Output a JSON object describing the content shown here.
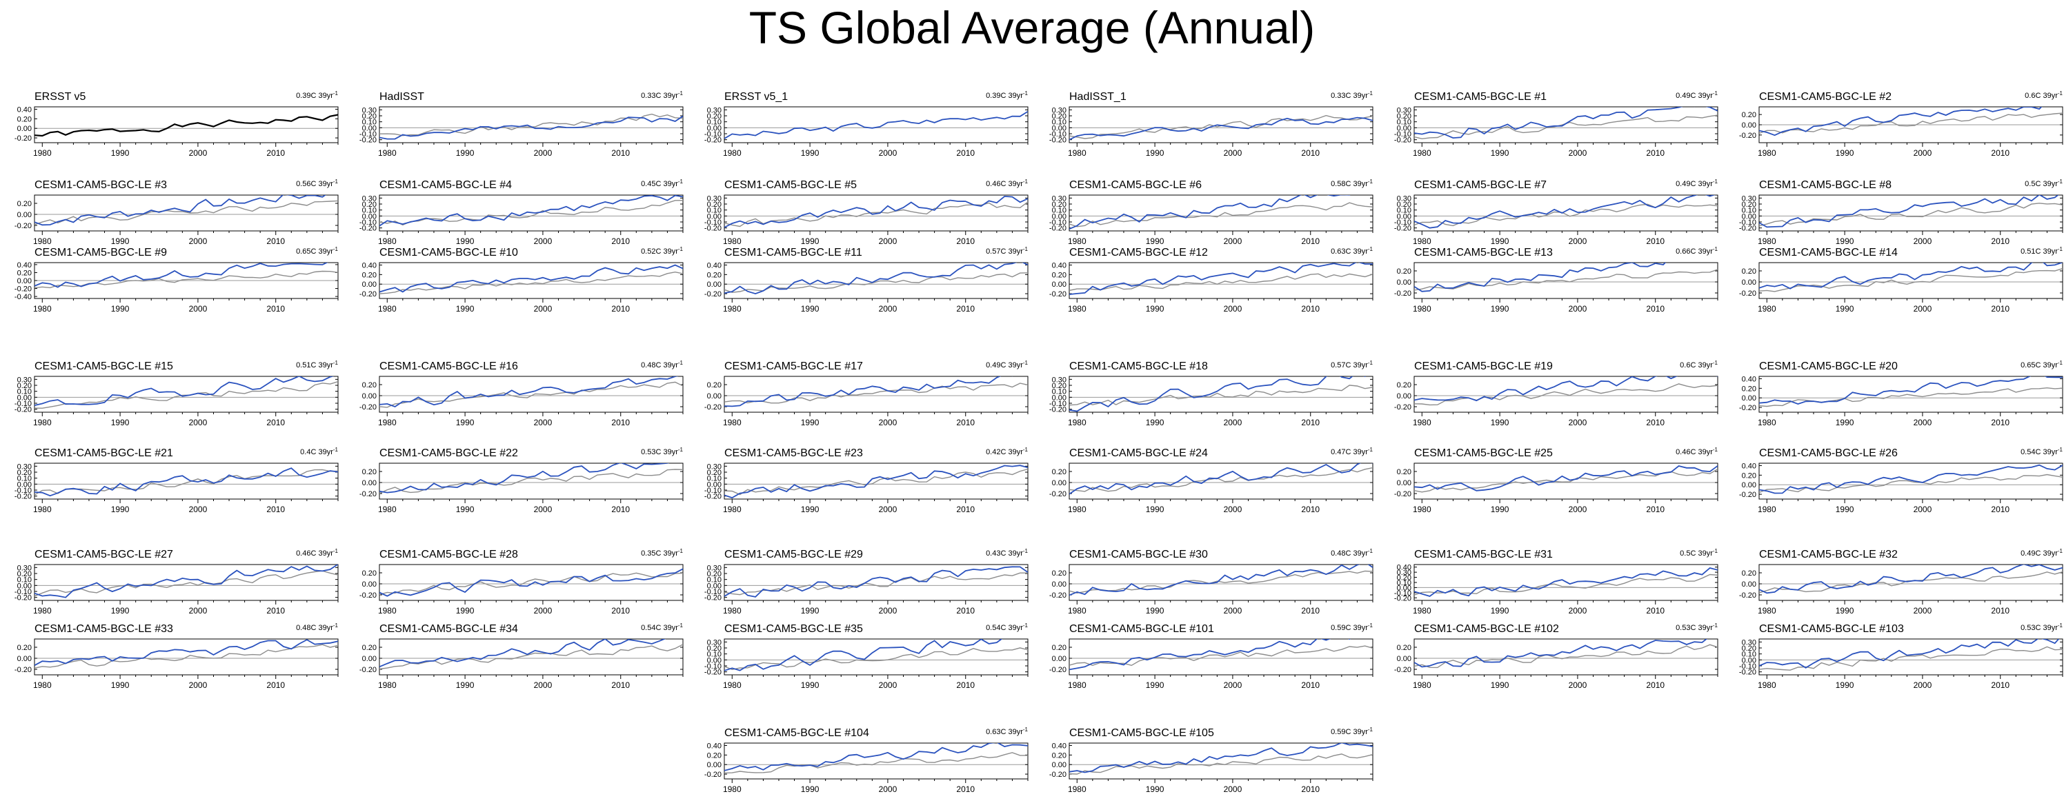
{
  "title": "TS Global Average (Annual)",
  "colors": {
    "observed": "#000000",
    "model": "#2a52be",
    "reference": "#8c8c8c",
    "zero_line": "#9a9a9a"
  },
  "chart_data": {
    "type": "line",
    "x_range": [
      1979,
      2018
    ],
    "x_ticks": [
      "1980",
      "1990",
      "2000",
      "2010"
    ],
    "grid": false,
    "panels": [
      {
        "title": "ERSST v5",
        "trend": "0.39C 39yr",
        "trend_sup": "-1",
        "ylim": [
          -0.3,
          0.45
        ],
        "yticks": [
          "0.40",
          "0.20",
          "0.00",
          "-0.20"
        ],
        "line_color": "observed",
        "has_reference": false,
        "seed": 1,
        "amplitude": 0.05
      },
      {
        "title": "HadISST",
        "trend": "0.33C 39yr",
        "trend_sup": "-1",
        "ylim": [
          -0.25,
          0.35
        ],
        "yticks": [
          "0.30",
          "0.20",
          "0.10",
          "0.00",
          "-0.10",
          "-0.20"
        ],
        "line_color": "model",
        "has_reference": true,
        "seed": 2,
        "amplitude": 0.05
      },
      {
        "title": "ERSST v5_1",
        "trend": "0.39C 39yr",
        "trend_sup": "-1",
        "ylim": [
          -0.25,
          0.35
        ],
        "yticks": [
          "0.30",
          "0.20",
          "0.10",
          "0.00",
          "-0.10",
          "-0.20"
        ],
        "line_color": "model",
        "has_reference": false,
        "seed": 3,
        "amplitude": 0.05
      },
      {
        "title": "HadISST_1",
        "trend": "0.33C 39yr",
        "trend_sup": "-1",
        "ylim": [
          -0.25,
          0.35
        ],
        "yticks": [
          "0.30",
          "0.20",
          "0.10",
          "0.00",
          "-0.10",
          "-0.20"
        ],
        "line_color": "model",
        "has_reference": true,
        "seed": 4,
        "amplitude": 0.05
      },
      {
        "title": "CESM1-CAM5-BGC-LE #1",
        "trend": "0.49C 39yr",
        "trend_sup": "-1",
        "ylim": [
          -0.25,
          0.35
        ],
        "yticks": [
          "0.30",
          "0.20",
          "0.10",
          "0.00",
          "-0.10",
          "-0.20"
        ],
        "line_color": "model",
        "has_reference": true,
        "seed": 5,
        "amplitude": 0.07
      },
      {
        "title": "CESM1-CAM5-BGC-LE #2",
        "trend": "0.6C 39yr",
        "trend_sup": "-1",
        "ylim": [
          -0.35,
          0.35
        ],
        "yticks": [
          "0.20",
          "0.00",
          "-0.20"
        ],
        "line_color": "model",
        "has_reference": true,
        "seed": 6,
        "amplitude": 0.07
      },
      {
        "title": "CESM1-CAM5-BGC-LE #3",
        "trend": "0.56C 39yr",
        "trend_sup": "-1",
        "ylim": [
          -0.3,
          0.35
        ],
        "yticks": [
          "0.20",
          "0.00",
          "-0.20"
        ],
        "line_color": "model",
        "has_reference": true,
        "seed": 7,
        "amplitude": 0.07
      },
      {
        "title": "CESM1-CAM5-BGC-LE #4",
        "trend": "0.45C 39yr",
        "trend_sup": "-1",
        "ylim": [
          -0.25,
          0.35
        ],
        "yticks": [
          "0.30",
          "0.20",
          "0.10",
          "0.00",
          "-0.10",
          "-0.20"
        ],
        "line_color": "model",
        "has_reference": true,
        "seed": 8,
        "amplitude": 0.07
      },
      {
        "title": "CESM1-CAM5-BGC-LE #5",
        "trend": "0.46C 39yr",
        "trend_sup": "-1",
        "ylim": [
          -0.25,
          0.35
        ],
        "yticks": [
          "0.30",
          "0.20",
          "0.10",
          "0.00",
          "-0.10",
          "-0.20"
        ],
        "line_color": "model",
        "has_reference": true,
        "seed": 9,
        "amplitude": 0.07
      },
      {
        "title": "CESM1-CAM5-BGC-LE #6",
        "trend": "0.58C 39yr",
        "trend_sup": "-1",
        "ylim": [
          -0.25,
          0.35
        ],
        "yticks": [
          "0.30",
          "0.20",
          "0.10",
          "0.00",
          "-0.10",
          "-0.20"
        ],
        "line_color": "model",
        "has_reference": true,
        "seed": 10,
        "amplitude": 0.07
      },
      {
        "title": "CESM1-CAM5-BGC-LE #7",
        "trend": "0.49C 39yr",
        "trend_sup": "-1",
        "ylim": [
          -0.25,
          0.35
        ],
        "yticks": [
          "0.30",
          "0.20",
          "0.10",
          "0.00",
          "-0.10",
          "-0.20"
        ],
        "line_color": "model",
        "has_reference": true,
        "seed": 11,
        "amplitude": 0.07
      },
      {
        "title": "CESM1-CAM5-BGC-LE #8",
        "trend": "0.5C 39yr",
        "trend_sup": "-1",
        "ylim": [
          -0.25,
          0.35
        ],
        "yticks": [
          "0.30",
          "0.20",
          "0.10",
          "0.00",
          "-0.10",
          "-0.20"
        ],
        "line_color": "model",
        "has_reference": true,
        "seed": 12,
        "amplitude": 0.07
      },
      {
        "title": "CESM1-CAM5-BGC-LE #9",
        "trend": "0.65C 39yr",
        "trend_sup": "-1",
        "ylim": [
          -0.45,
          0.45
        ],
        "yticks": [
          "0.40",
          "0.20",
          "0.00",
          "-0.20",
          "-0.40"
        ],
        "line_color": "model",
        "has_reference": true,
        "seed": 13,
        "amplitude": 0.08
      },
      {
        "title": "CESM1-CAM5-BGC-LE #10",
        "trend": "0.52C 39yr",
        "trend_sup": "-1",
        "ylim": [
          -0.3,
          0.45
        ],
        "yticks": [
          "0.40",
          "0.20",
          "0.00",
          "-0.20"
        ],
        "line_color": "model",
        "has_reference": true,
        "seed": 14,
        "amplitude": 0.07
      },
      {
        "title": "CESM1-CAM5-BGC-LE #11",
        "trend": "0.57C 39yr",
        "trend_sup": "-1",
        "ylim": [
          -0.3,
          0.45
        ],
        "yticks": [
          "0.40",
          "0.20",
          "0.00",
          "-0.20"
        ],
        "line_color": "model",
        "has_reference": true,
        "seed": 15,
        "amplitude": 0.07
      },
      {
        "title": "CESM1-CAM5-BGC-LE #12",
        "trend": "0.63C 39yr",
        "trend_sup": "-1",
        "ylim": [
          -0.3,
          0.45
        ],
        "yticks": [
          "0.40",
          "0.20",
          "0.00",
          "-0.20"
        ],
        "line_color": "model",
        "has_reference": true,
        "seed": 16,
        "amplitude": 0.07
      },
      {
        "title": "CESM1-CAM5-BGC-LE #13",
        "trend": "0.66C 39yr",
        "trend_sup": "-1",
        "ylim": [
          -0.3,
          0.35
        ],
        "yticks": [
          "0.20",
          "0.00",
          "-0.20"
        ],
        "line_color": "model",
        "has_reference": true,
        "seed": 17,
        "amplitude": 0.07
      },
      {
        "title": "CESM1-CAM5-BGC-LE #14",
        "trend": "0.51C 39yr",
        "trend_sup": "-1",
        "ylim": [
          -0.3,
          0.35
        ],
        "yticks": [
          "0.20",
          "0.00",
          "-0.20"
        ],
        "line_color": "model",
        "has_reference": true,
        "seed": 18,
        "amplitude": 0.07
      },
      {
        "title": "CESM1-CAM5-BGC-LE #15",
        "trend": "0.51C 39yr",
        "trend_sup": "-1",
        "ylim": [
          -0.25,
          0.35
        ],
        "yticks": [
          "0.30",
          "0.20",
          "0.10",
          "0.00",
          "-0.10",
          "-0.20"
        ],
        "line_color": "model",
        "has_reference": true,
        "seed": 19,
        "amplitude": 0.07
      },
      {
        "title": "CESM1-CAM5-BGC-LE #16",
        "trend": "0.48C 39yr",
        "trend_sup": "-1",
        "ylim": [
          -0.3,
          0.35
        ],
        "yticks": [
          "0.20",
          "0.00",
          "-0.20"
        ],
        "line_color": "model",
        "has_reference": true,
        "seed": 20,
        "amplitude": 0.07
      },
      {
        "title": "CESM1-CAM5-BGC-LE #17",
        "trend": "0.49C 39yr",
        "trend_sup": "-1",
        "ylim": [
          -0.3,
          0.35
        ],
        "yticks": [
          "0.20",
          "0.00",
          "-0.20"
        ],
        "line_color": "model",
        "has_reference": true,
        "seed": 21,
        "amplitude": 0.07
      },
      {
        "title": "CESM1-CAM5-BGC-LE #18",
        "trend": "0.57C 39yr",
        "trend_sup": "-1",
        "ylim": [
          -0.25,
          0.35
        ],
        "yticks": [
          "0.30",
          "0.20",
          "0.10",
          "0.00",
          "-0.10",
          "-0.20"
        ],
        "line_color": "model",
        "has_reference": true,
        "seed": 22,
        "amplitude": 0.07
      },
      {
        "title": "CESM1-CAM5-BGC-LE #19",
        "trend": "0.6C 39yr",
        "trend_sup": "-1",
        "ylim": [
          -0.3,
          0.35
        ],
        "yticks": [
          "0.20",
          "0.00",
          "-0.20"
        ],
        "line_color": "model",
        "has_reference": true,
        "seed": 23,
        "amplitude": 0.07
      },
      {
        "title": "CESM1-CAM5-BGC-LE #20",
        "trend": "0.65C 39yr",
        "trend_sup": "-1",
        "ylim": [
          -0.3,
          0.45
        ],
        "yticks": [
          "0.40",
          "0.20",
          "0.00",
          "-0.20"
        ],
        "line_color": "model",
        "has_reference": true,
        "seed": 24,
        "amplitude": 0.07
      },
      {
        "title": "CESM1-CAM5-BGC-LE #21",
        "trend": "0.4C 39yr",
        "trend_sup": "-1",
        "ylim": [
          -0.25,
          0.35
        ],
        "yticks": [
          "0.30",
          "0.20",
          "0.10",
          "0.00",
          "-0.10",
          "-0.20"
        ],
        "line_color": "model",
        "has_reference": true,
        "seed": 25,
        "amplitude": 0.07
      },
      {
        "title": "CESM1-CAM5-BGC-LE #22",
        "trend": "0.53C 39yr",
        "trend_sup": "-1",
        "ylim": [
          -0.3,
          0.35
        ],
        "yticks": [
          "0.20",
          "0.00",
          "-0.20"
        ],
        "line_color": "model",
        "has_reference": true,
        "seed": 26,
        "amplitude": 0.07
      },
      {
        "title": "CESM1-CAM5-BGC-LE #23",
        "trend": "0.42C 39yr",
        "trend_sup": "-1",
        "ylim": [
          -0.25,
          0.35
        ],
        "yticks": [
          "0.30",
          "0.20",
          "0.10",
          "0.00",
          "-0.10",
          "-0.20"
        ],
        "line_color": "model",
        "has_reference": true,
        "seed": 27,
        "amplitude": 0.07
      },
      {
        "title": "CESM1-CAM5-BGC-LE #24",
        "trend": "0.47C 39yr",
        "trend_sup": "-1",
        "ylim": [
          -0.3,
          0.35
        ],
        "yticks": [
          "0.20",
          "0.00",
          "-0.20"
        ],
        "line_color": "model",
        "has_reference": true,
        "seed": 28,
        "amplitude": 0.07
      },
      {
        "title": "CESM1-CAM5-BGC-LE #25",
        "trend": "0.46C 39yr",
        "trend_sup": "-1",
        "ylim": [
          -0.3,
          0.35
        ],
        "yticks": [
          "0.20",
          "0.00",
          "-0.20"
        ],
        "line_color": "model",
        "has_reference": true,
        "seed": 29,
        "amplitude": 0.07
      },
      {
        "title": "CESM1-CAM5-BGC-LE #26",
        "trend": "0.54C 39yr",
        "trend_sup": "-1",
        "ylim": [
          -0.3,
          0.45
        ],
        "yticks": [
          "0.40",
          "0.20",
          "0.00",
          "-0.20"
        ],
        "line_color": "model",
        "has_reference": true,
        "seed": 30,
        "amplitude": 0.07
      },
      {
        "title": "CESM1-CAM5-BGC-LE #27",
        "trend": "0.46C 39yr",
        "trend_sup": "-1",
        "ylim": [
          -0.25,
          0.35
        ],
        "yticks": [
          "0.30",
          "0.20",
          "0.10",
          "0.00",
          "-0.10",
          "-0.20"
        ],
        "line_color": "model",
        "has_reference": true,
        "seed": 31,
        "amplitude": 0.07
      },
      {
        "title": "CESM1-CAM5-BGC-LE #28",
        "trend": "0.35C 39yr",
        "trend_sup": "-1",
        "ylim": [
          -0.3,
          0.35
        ],
        "yticks": [
          "0.20",
          "0.00",
          "-0.20"
        ],
        "line_color": "model",
        "has_reference": true,
        "seed": 32,
        "amplitude": 0.07
      },
      {
        "title": "CESM1-CAM5-BGC-LE #29",
        "trend": "0.43C 39yr",
        "trend_sup": "-1",
        "ylim": [
          -0.25,
          0.35
        ],
        "yticks": [
          "0.30",
          "0.20",
          "0.10",
          "0.00",
          "-0.10",
          "-0.20"
        ],
        "line_color": "model",
        "has_reference": true,
        "seed": 33,
        "amplitude": 0.07
      },
      {
        "title": "CESM1-CAM5-BGC-LE #30",
        "trend": "0.48C 39yr",
        "trend_sup": "-1",
        "ylim": [
          -0.3,
          0.35
        ],
        "yticks": [
          "0.20",
          "0.00",
          "-0.20"
        ],
        "line_color": "model",
        "has_reference": true,
        "seed": 34,
        "amplitude": 0.07
      },
      {
        "title": "CESM1-CAM5-BGC-LE #31",
        "trend": "0.5C 39yr",
        "trend_sup": "-1",
        "ylim": [
          -0.25,
          0.45
        ],
        "yticks": [
          "0.40",
          "0.30",
          "0.20",
          "0.10",
          "0.00",
          "-0.10",
          "-0.20"
        ],
        "line_color": "model",
        "has_reference": true,
        "seed": 35,
        "amplitude": 0.07
      },
      {
        "title": "CESM1-CAM5-BGC-LE #32",
        "trend": "0.49C 39yr",
        "trend_sup": "-1",
        "ylim": [
          -0.3,
          0.35
        ],
        "yticks": [
          "0.20",
          "0.00",
          "-0.20"
        ],
        "line_color": "model",
        "has_reference": true,
        "seed": 36,
        "amplitude": 0.07
      },
      {
        "title": "CESM1-CAM5-BGC-LE #33",
        "trend": "0.48C 39yr",
        "trend_sup": "-1",
        "ylim": [
          -0.3,
          0.35
        ],
        "yticks": [
          "0.20",
          "0.00",
          "-0.20"
        ],
        "line_color": "model",
        "has_reference": true,
        "seed": 37,
        "amplitude": 0.07
      },
      {
        "title": "CESM1-CAM5-BGC-LE #34",
        "trend": "0.54C 39yr",
        "trend_sup": "-1",
        "ylim": [
          -0.3,
          0.35
        ],
        "yticks": [
          "0.20",
          "0.00",
          "-0.20"
        ],
        "line_color": "model",
        "has_reference": true,
        "seed": 38,
        "amplitude": 0.07
      },
      {
        "title": "CESM1-CAM5-BGC-LE #35",
        "trend": "0.54C 39yr",
        "trend_sup": "-1",
        "ylim": [
          -0.25,
          0.35
        ],
        "yticks": [
          "0.30",
          "0.20",
          "0.10",
          "0.00",
          "-0.10",
          "-0.20"
        ],
        "line_color": "model",
        "has_reference": true,
        "seed": 39,
        "amplitude": 0.07
      },
      {
        "title": "CESM1-CAM5-BGC-LE #101",
        "trend": "0.59C 39yr",
        "trend_sup": "-1",
        "ylim": [
          -0.3,
          0.35
        ],
        "yticks": [
          "0.20",
          "0.00",
          "-0.20"
        ],
        "line_color": "model",
        "has_reference": true,
        "seed": 40,
        "amplitude": 0.07
      },
      {
        "title": "CESM1-CAM5-BGC-LE #102",
        "trend": "0.53C 39yr",
        "trend_sup": "-1",
        "ylim": [
          -0.3,
          0.35
        ],
        "yticks": [
          "0.20",
          "0.00",
          "-0.20"
        ],
        "line_color": "model",
        "has_reference": true,
        "seed": 41,
        "amplitude": 0.07
      },
      {
        "title": "CESM1-CAM5-BGC-LE #103",
        "trend": "0.53C 39yr",
        "trend_sup": "-1",
        "ylim": [
          -0.25,
          0.35
        ],
        "yticks": [
          "0.30",
          "0.20",
          "0.10",
          "0.00",
          "-0.10",
          "-0.20"
        ],
        "line_color": "model",
        "has_reference": true,
        "seed": 42,
        "amplitude": 0.07
      },
      {
        "title": "CESM1-CAM5-BGC-LE #104",
        "trend": "0.63C 39yr",
        "trend_sup": "-1",
        "ylim": [
          -0.3,
          0.45
        ],
        "yticks": [
          "0.40",
          "0.20",
          "0.00",
          "-0.20"
        ],
        "line_color": "model",
        "has_reference": true,
        "seed": 43,
        "amplitude": 0.07
      },
      {
        "title": "CESM1-CAM5-BGC-LE #105",
        "trend": "0.59C 39yr",
        "trend_sup": "-1",
        "ylim": [
          -0.3,
          0.45
        ],
        "yticks": [
          "0.40",
          "0.20",
          "0.00",
          "-0.20"
        ],
        "line_color": "model",
        "has_reference": true,
        "seed": 44,
        "amplitude": 0.07
      }
    ]
  }
}
